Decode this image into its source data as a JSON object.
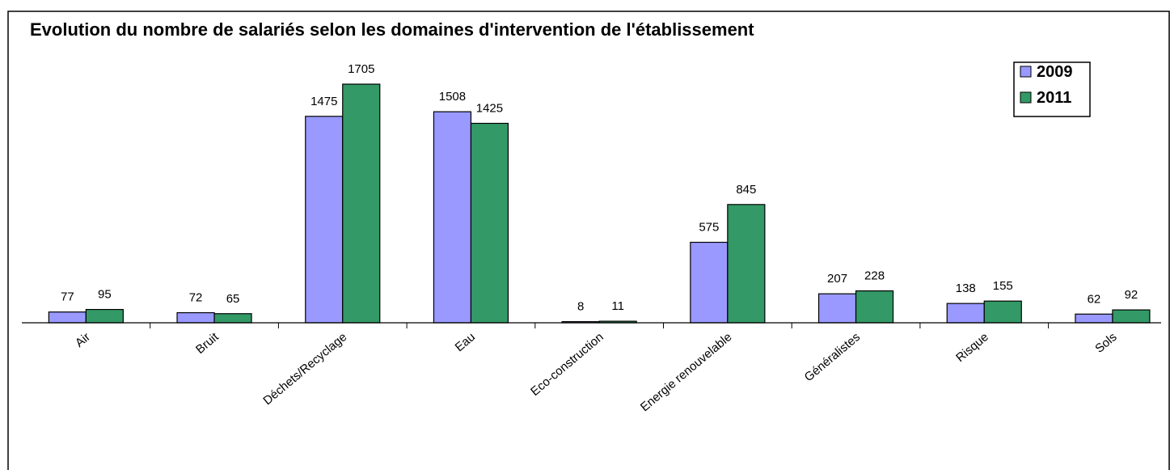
{
  "chart_data": {
    "type": "bar",
    "title": "Evolution du nombre de salariés selon les domaines d'intervention de l'établissement",
    "categories": [
      "Air",
      "Bruit",
      "Déchets/Recyclage",
      "Eau",
      "Eco-construction",
      "Energie renouvelable",
      "Généralistes",
      "Risque",
      "Sols"
    ],
    "series": [
      {
        "name": "2009",
        "color": "#9999ff",
        "values": [
          77,
          72,
          1475,
          1508,
          8,
          575,
          207,
          138,
          62
        ]
      },
      {
        "name": "2011",
        "color": "#339966",
        "values": [
          95,
          65,
          1705,
          1425,
          11,
          845,
          228,
          155,
          92
        ]
      }
    ],
    "ylim": [
      0,
      2000
    ],
    "legend": "top-right",
    "grid": false
  }
}
